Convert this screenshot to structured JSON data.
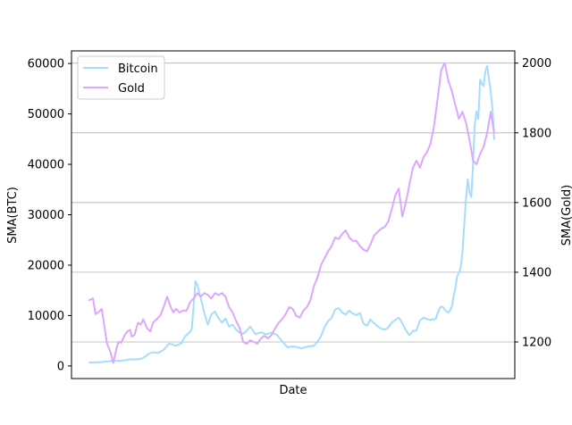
{
  "chart_data": {
    "type": "line",
    "xlabel": "Date",
    "ylabel_left": "SMA(BTC)",
    "ylabel_right": "SMA(Gold)",
    "ylim_left": [
      -2500,
      62500
    ],
    "ylim_right": [
      1095,
      2035
    ],
    "yticks_left": [
      0,
      10000,
      20000,
      30000,
      40000,
      50000,
      60000
    ],
    "yticks_left_labels": [
      "0",
      "10000",
      "20000",
      "30000",
      "40000",
      "50000",
      "60000"
    ],
    "yticks_right": [
      1200,
      1400,
      1600,
      1800,
      2000
    ],
    "yticks_right_labels": [
      "1200",
      "1400",
      "1600",
      "1800",
      "2000"
    ],
    "grid": "horizontal lines at right-axis ticks",
    "legend_position": "top-left",
    "colors": {
      "bitcoin": "#a6dcff",
      "gold": "#dda6ff",
      "grid": "#b0b0b0"
    },
    "series": [
      {
        "name": "Bitcoin",
        "axis": "left",
        "x": [
          0,
          8,
          16,
          20,
          26,
          32,
          38,
          42,
          45,
          48,
          54,
          60,
          64,
          68,
          72,
          78,
          84,
          90,
          94,
          98,
          104,
          108,
          112,
          114,
          116,
          118,
          120,
          122,
          126,
          130,
          134,
          138,
          142,
          146,
          150,
          154,
          158,
          162,
          166,
          170,
          174,
          178,
          182,
          188,
          194,
          200,
          206,
          212,
          218,
          224,
          230,
          236,
          240,
          246,
          250,
          254,
          258,
          262,
          266,
          270,
          274,
          278,
          282,
          286,
          290,
          294,
          298,
          302,
          306,
          310,
          314,
          318,
          322,
          326,
          330,
          334,
          338,
          342,
          346,
          350,
          354,
          358,
          362,
          366,
          370,
          374,
          378,
          382,
          386,
          388,
          390,
          392,
          394,
          396,
          398,
          400,
          402,
          404,
          406,
          408,
          410,
          412,
          414,
          416,
          418,
          420,
          422,
          424,
          426,
          428,
          430,
          432,
          434,
          436,
          438,
          440,
          442,
          444,
          446,
          448,
          450,
          452,
          454,
          456,
          458
        ],
        "values": [
          700,
          700,
          800,
          900,
          1000,
          1000,
          1100,
          1200,
          1300,
          1300,
          1300,
          1500,
          2000,
          2500,
          2700,
          2600,
          3200,
          4400,
          4300,
          4000,
          4500,
          5800,
          6500,
          6800,
          7500,
          12000,
          16800,
          16200,
          13500,
          10500,
          8200,
          10200,
          10800,
          9500,
          8600,
          9400,
          7800,
          8200,
          7200,
          6600,
          6400,
          7000,
          7800,
          6300,
          6700,
          6300,
          6600,
          6200,
          4900,
          3700,
          3900,
          3700,
          3500,
          3800,
          3900,
          4000,
          4800,
          5900,
          7700,
          8900,
          9500,
          11200,
          11500,
          10600,
          10200,
          11000,
          10400,
          10100,
          10500,
          8400,
          8000,
          9200,
          8500,
          7900,
          7400,
          7200,
          7600,
          8600,
          9100,
          9600,
          8500,
          7100,
          6100,
          6900,
          7100,
          9000,
          9600,
          9300,
          9100,
          9300,
          9200,
          9400,
          10500,
          11400,
          11800,
          11700,
          11200,
          10800,
          10600,
          11000,
          11800,
          13800,
          15500,
          17800,
          18500,
          19500,
          22500,
          28000,
          33000,
          37000,
          34500,
          33500,
          40000,
          48000,
          50500,
          49000,
          56800,
          56000,
          55500,
          58500,
          59500,
          57000,
          54500,
          51000,
          45000
        ]
      },
      {
        "name": "Gold",
        "axis": "right",
        "x": [
          0,
          4,
          7,
          10,
          14,
          17,
          20,
          24,
          27,
          31,
          33,
          36,
          40,
          43,
          46,
          48,
          51,
          55,
          58,
          61,
          65,
          69,
          72,
          76,
          80,
          84,
          88,
          92,
          95,
          98,
          102,
          106,
          110,
          114,
          118,
          122,
          126,
          130,
          134,
          138,
          142,
          146,
          150,
          154,
          158,
          162,
          166,
          170,
          174,
          178,
          182,
          186,
          190,
          194,
          198,
          202,
          206,
          210,
          214,
          218,
          222,
          226,
          230,
          234,
          238,
          242,
          246,
          250,
          254,
          258,
          262,
          266,
          270,
          274,
          278,
          282,
          286,
          290,
          294,
          298,
          302,
          306,
          310,
          314,
          318,
          322,
          326,
          330,
          334,
          338,
          342,
          346,
          350,
          354,
          358,
          362,
          366,
          370,
          374,
          378,
          382,
          386,
          390,
          394,
          398,
          402,
          406,
          410,
          414,
          418,
          422,
          426,
          430,
          434,
          438,
          442,
          446,
          450,
          454,
          458
        ],
        "values": [
          1320,
          1325,
          1280,
          1285,
          1295,
          1245,
          1195,
          1170,
          1140,
          1185,
          1200,
          1198,
          1220,
          1230,
          1235,
          1215,
          1220,
          1255,
          1250,
          1265,
          1240,
          1230,
          1255,
          1265,
          1275,
          1300,
          1330,
          1300,
          1285,
          1295,
          1285,
          1290,
          1290,
          1315,
          1325,
          1340,
          1330,
          1340,
          1335,
          1325,
          1340,
          1335,
          1340,
          1330,
          1300,
          1285,
          1260,
          1240,
          1200,
          1195,
          1205,
          1200,
          1195,
          1210,
          1218,
          1210,
          1220,
          1238,
          1255,
          1265,
          1280,
          1300,
          1295,
          1275,
          1270,
          1290,
          1300,
          1320,
          1360,
          1385,
          1420,
          1440,
          1460,
          1475,
          1500,
          1495,
          1510,
          1520,
          1500,
          1490,
          1490,
          1475,
          1465,
          1460,
          1480,
          1505,
          1515,
          1525,
          1530,
          1545,
          1580,
          1620,
          1640,
          1560,
          1600,
          1650,
          1700,
          1720,
          1700,
          1730,
          1745,
          1770,
          1820,
          1900,
          1980,
          2000,
          1950,
          1920,
          1880,
          1840,
          1860,
          1830,
          1780,
          1720,
          1710,
          1740,
          1760,
          1800,
          1860,
          1800
        ]
      }
    ]
  }
}
